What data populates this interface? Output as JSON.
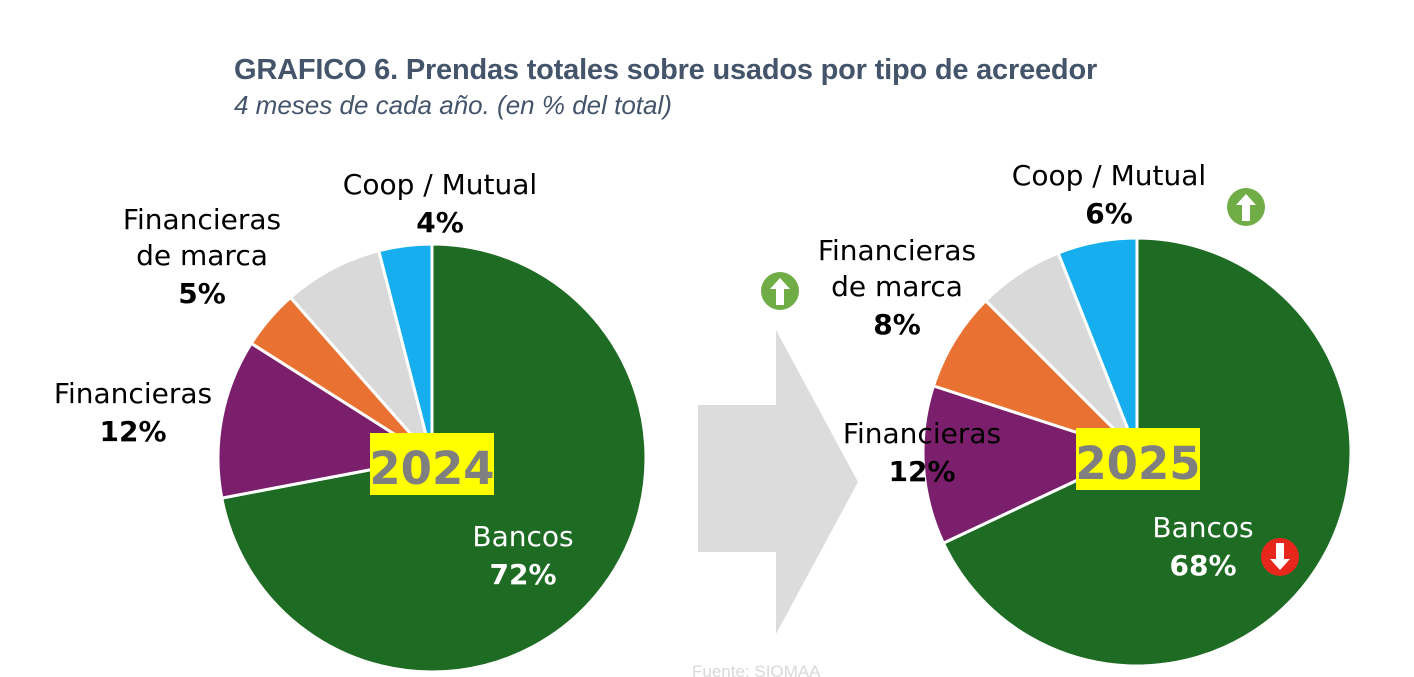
{
  "title": "GRAFICO 6. Prendas totales sobre usados por tipo de acreedor",
  "subtitle": "4 meses de cada año. (en % del total)",
  "source": "Fuente: SIOMAA",
  "colors": {
    "Bancos": "#1e6b23",
    "Financieras": "#7b1f6c",
    "Financieras de marca": "#e97232",
    "Otros": "#d9d9d9",
    "Coop / Mutual": "#16aeef",
    "arrow": "#dcdcdc",
    "up_icon": "#70ad47",
    "down_icon": "#e8271c",
    "year_highlight": "#ffff00"
  },
  "chart_data": [
    {
      "type": "pie",
      "year_label": "2024",
      "slices": [
        {
          "name": "Bancos",
          "label_lines": [
            "Bancos"
          ],
          "value": 72,
          "label": "72%",
          "color": "#1e6b23"
        },
        {
          "name": "Financieras",
          "label_lines": [
            "Financieras"
          ],
          "value": 12,
          "label": "12%",
          "color": "#7b1f6c"
        },
        {
          "name": "Financieras de marca",
          "label_lines": [
            "Financieras",
            "de marca"
          ],
          "value": 4.5,
          "label": "5%",
          "color": "#e97232"
        },
        {
          "name": "",
          "label_lines": [],
          "value": 7.5,
          "label": "",
          "color": "#d9d9d9"
        },
        {
          "name": "Coop / Mutual",
          "label_lines": [
            "Coop / Mutual"
          ],
          "value": 4,
          "label": "4%",
          "color": "#16aeef"
        }
      ],
      "indicators": []
    },
    {
      "type": "pie",
      "year_label": "2025",
      "slices": [
        {
          "name": "Bancos",
          "label_lines": [
            "Bancos"
          ],
          "value": 68,
          "label": "68%",
          "color": "#1e6b23"
        },
        {
          "name": "Financieras",
          "label_lines": [
            "Financieras"
          ],
          "value": 12,
          "label": "12%",
          "color": "#7b1f6c"
        },
        {
          "name": "Financieras de marca",
          "label_lines": [
            "Financieras",
            "de marca"
          ],
          "value": 7.5,
          "label": "8%",
          "color": "#e97232"
        },
        {
          "name": "",
          "label_lines": [],
          "value": 6.5,
          "label": "",
          "color": "#d9d9d9"
        },
        {
          "name": "Coop / Mutual",
          "label_lines": [
            "Coop / Mutual"
          ],
          "value": 6,
          "label": "6%",
          "color": "#16aeef"
        }
      ],
      "indicators": [
        {
          "series": "Financieras de marca",
          "direction": "up",
          "icon": "arrow-up-circle-icon"
        },
        {
          "series": "Coop / Mutual",
          "direction": "up",
          "icon": "arrow-up-circle-icon"
        },
        {
          "series": "Bancos",
          "direction": "down",
          "icon": "arrow-down-circle-icon"
        }
      ]
    }
  ]
}
